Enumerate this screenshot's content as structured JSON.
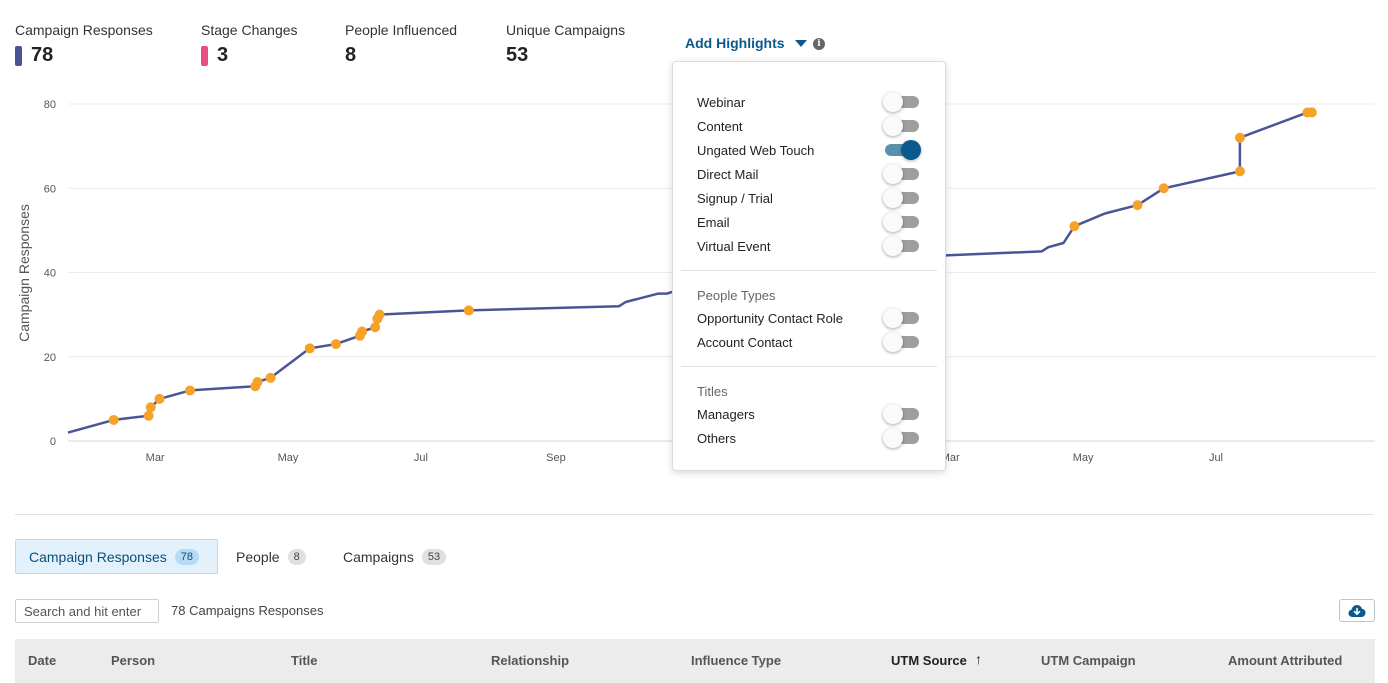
{
  "stats": [
    {
      "label": "Campaign Responses",
      "value": "78",
      "color": "#4a5596"
    },
    {
      "label": "Stage Changes",
      "value": "3",
      "color": "#ea4d7f"
    },
    {
      "label": "People Influenced",
      "value": "8"
    },
    {
      "label": "Unique Campaigns",
      "value": "53"
    }
  ],
  "highlights": {
    "button_label": "Add Highlights",
    "info_icon": "i",
    "items": [
      {
        "label": "Webinar",
        "on": false
      },
      {
        "label": "Content",
        "on": false
      },
      {
        "label": "Ungated Web Touch",
        "on": true
      },
      {
        "label": "Direct Mail",
        "on": false
      },
      {
        "label": "Signup / Trial",
        "on": false
      },
      {
        "label": "Email",
        "on": false
      },
      {
        "label": "Virtual Event",
        "on": false
      }
    ],
    "people_types_heading": "People Types",
    "people_types": [
      {
        "label": "Opportunity Contact Role",
        "on": false
      },
      {
        "label": "Account Contact",
        "on": false
      }
    ],
    "titles_heading": "Titles",
    "titles": [
      {
        "label": "Managers",
        "on": false
      },
      {
        "label": "Others",
        "on": false
      }
    ]
  },
  "chart_data": {
    "type": "line",
    "ylabel": "Campaign Responses",
    "ylim": [
      0,
      80
    ],
    "yticks": [
      0,
      20,
      40,
      60,
      80
    ],
    "xlim": [
      0,
      600
    ],
    "xticks": [
      {
        "label": "Mar",
        "x": 40
      },
      {
        "label": "May",
        "x": 101
      },
      {
        "label": "Jul",
        "x": 162
      },
      {
        "label": "Sep",
        "x": 224
      },
      {
        "label": "Mar",
        "x": 405
      },
      {
        "label": "May",
        "x": 466
      },
      {
        "label": "Jul",
        "x": 527
      }
    ],
    "line_color": "#4a5596",
    "marker_color": "#f6a228",
    "series": [
      {
        "values": [
          [
            0,
            2
          ],
          [
            21,
            5
          ],
          [
            37,
            6
          ],
          [
            38,
            8
          ],
          [
            42,
            10
          ],
          [
            56,
            12
          ],
          [
            86,
            13
          ],
          [
            87,
            14
          ],
          [
            93,
            15
          ],
          [
            111,
            22
          ],
          [
            123,
            23
          ],
          [
            134,
            25
          ],
          [
            135,
            26
          ],
          [
            141,
            27
          ],
          [
            142,
            29
          ],
          [
            143,
            30
          ],
          [
            184,
            31
          ],
          [
            253,
            32
          ],
          [
            256,
            33
          ],
          [
            271,
            35
          ],
          [
            275,
            35
          ],
          [
            318,
            42
          ],
          [
            332,
            43.5
          ],
          [
            400,
            44
          ],
          [
            447,
            45
          ],
          [
            450,
            46
          ],
          [
            457,
            47
          ],
          [
            462,
            51
          ],
          [
            476,
            54
          ],
          [
            491,
            56
          ],
          [
            503,
            60
          ],
          [
            538,
            64
          ],
          [
            538,
            72
          ],
          [
            569,
            78
          ],
          [
            571,
            78
          ]
        ],
        "markers": [
          [
            21,
            5
          ],
          [
            37,
            6
          ],
          [
            38,
            8
          ],
          [
            42,
            10
          ],
          [
            56,
            12
          ],
          [
            86,
            13
          ],
          [
            87,
            14
          ],
          [
            93,
            15
          ],
          [
            111,
            22
          ],
          [
            123,
            23
          ],
          [
            134,
            25
          ],
          [
            135,
            26
          ],
          [
            141,
            27
          ],
          [
            142,
            29
          ],
          [
            143,
            30
          ],
          [
            184,
            31
          ],
          [
            462,
            51
          ],
          [
            491,
            56
          ],
          [
            503,
            60
          ],
          [
            538,
            64
          ],
          [
            538,
            72
          ],
          [
            569,
            78
          ],
          [
            571,
            78
          ]
        ]
      }
    ]
  },
  "tabs": [
    {
      "label": "Campaign Responses",
      "count": "78"
    },
    {
      "label": "People",
      "count": "8"
    },
    {
      "label": "Campaigns",
      "count": "53"
    }
  ],
  "search": {
    "placeholder": "Search and hit enter"
  },
  "result_count": "78 Campaigns Responses",
  "download_icon": "cloud-download-icon",
  "table": {
    "columns": [
      "Date",
      "Person",
      "Title",
      "Relationship",
      "Influence Type",
      "UTM Source",
      "UTM Campaign",
      "Amount Attributed"
    ],
    "sort_column": "UTM Source",
    "sort_arrow": "↑"
  }
}
